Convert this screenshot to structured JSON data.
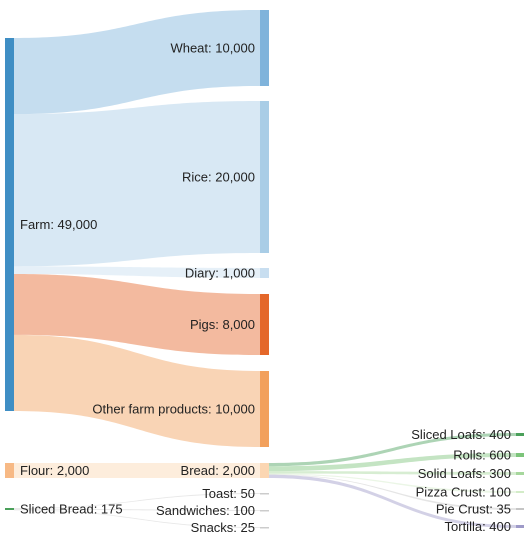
{
  "chart_data": {
    "type": "sankey",
    "nodes": [
      {
        "id": "farm",
        "label": "Farm: 49,000",
        "value": 49000,
        "color": "#3f8ec4"
      },
      {
        "id": "wheat",
        "label": "Wheat: 10,000",
        "value": 10000,
        "color": "#7fb3db"
      },
      {
        "id": "rice",
        "label": "Rice: 20,000",
        "value": 20000,
        "color": "#a9cde6"
      },
      {
        "id": "diary",
        "label": "Diary: 1,000",
        "value": 1000,
        "color": "#c8def0"
      },
      {
        "id": "pigs",
        "label": "Pigs: 8,000",
        "value": 8000,
        "color": "#e4672a"
      },
      {
        "id": "other",
        "label": "Other farm products: 10,000",
        "value": 10000,
        "color": "#f2a05c"
      },
      {
        "id": "flour",
        "label": "Flour: 2,000",
        "value": 2000,
        "color": "#f7b985"
      },
      {
        "id": "bread",
        "label": "Bread: 2,000",
        "value": 2000,
        "color": "#fbd6b2"
      },
      {
        "id": "sliced_bread",
        "label": "Sliced Bread: 175",
        "value": 175,
        "color": "#4aa05a"
      },
      {
        "id": "toast",
        "label": "Toast: 50",
        "value": 50,
        "color": "#cccccc"
      },
      {
        "id": "sandwiches",
        "label": "Sandwiches: 100",
        "value": 100,
        "color": "#cccccc"
      },
      {
        "id": "snacks",
        "label": "Snacks: 25",
        "value": 25,
        "color": "#cccccc"
      },
      {
        "id": "sliced_loafs",
        "label": "Sliced Loafs: 400",
        "value": 400,
        "color": "#4aa05a"
      },
      {
        "id": "rolls",
        "label": "Rolls: 600",
        "value": 600,
        "color": "#7cc47a"
      },
      {
        "id": "solid_loafs",
        "label": "Solid Loafs: 300",
        "value": 300,
        "color": "#a6d79c"
      },
      {
        "id": "pizza_crust",
        "label": "Pizza Crust: 100",
        "value": 100,
        "color": "#d3ecc8"
      },
      {
        "id": "pie_crust",
        "label": "Pie Crust: 35",
        "value": 35,
        "color": "#c5c5c5"
      },
      {
        "id": "tortilla",
        "label": "Tortilla: 400",
        "value": 400,
        "color": "#9e9ac8"
      }
    ],
    "links": [
      {
        "source": "farm",
        "target": "wheat",
        "value": 10000
      },
      {
        "source": "farm",
        "target": "rice",
        "value": 20000
      },
      {
        "source": "farm",
        "target": "diary",
        "value": 1000
      },
      {
        "source": "farm",
        "target": "pigs",
        "value": 8000
      },
      {
        "source": "farm",
        "target": "other",
        "value": 10000
      },
      {
        "source": "flour",
        "target": "bread",
        "value": 2000
      },
      {
        "source": "sliced_bread",
        "target": "toast",
        "value": 50
      },
      {
        "source": "sliced_bread",
        "target": "sandwiches",
        "value": 100
      },
      {
        "source": "sliced_bread",
        "target": "snacks",
        "value": 25
      },
      {
        "source": "bread",
        "target": "sliced_loafs",
        "value": 400
      },
      {
        "source": "bread",
        "target": "rolls",
        "value": 600
      },
      {
        "source": "bread",
        "target": "solid_loafs",
        "value": 300
      },
      {
        "source": "bread",
        "target": "pizza_crust",
        "value": 100
      },
      {
        "source": "bread",
        "target": "pie_crust",
        "value": 35
      },
      {
        "source": "bread",
        "target": "tortilla",
        "value": 400
      }
    ]
  }
}
